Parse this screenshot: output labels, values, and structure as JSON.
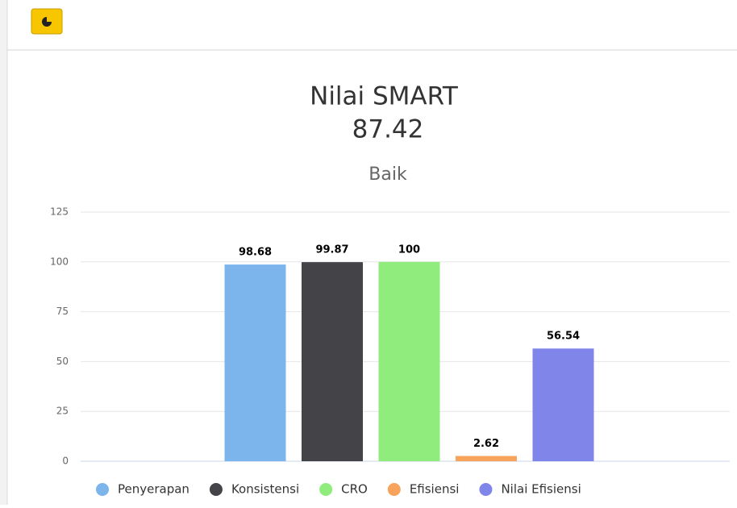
{
  "chart_data": {
    "type": "bar",
    "title": "Nilai SMART",
    "score": "87.42",
    "subtitle": "Baik",
    "categories": [
      null
    ],
    "series": [
      {
        "name": "Penyerapan",
        "color": "#7cb5ec",
        "values": [
          98.68
        ]
      },
      {
        "name": "Konsistensi",
        "color": "#434348",
        "values": [
          99.87
        ]
      },
      {
        "name": "CRO",
        "color": "#90ed7d",
        "values": [
          100
        ]
      },
      {
        "name": "Efisiensi",
        "color": "#f7a35c",
        "values": [
          2.62
        ]
      },
      {
        "name": "Nilai Efisiensi",
        "color": "#8085e9",
        "values": [
          56.54
        ]
      }
    ],
    "ylim": [
      0,
      125
    ],
    "yticks": [
      0,
      25,
      50,
      75,
      100,
      125
    ],
    "grid": true,
    "legend": "bottom"
  }
}
